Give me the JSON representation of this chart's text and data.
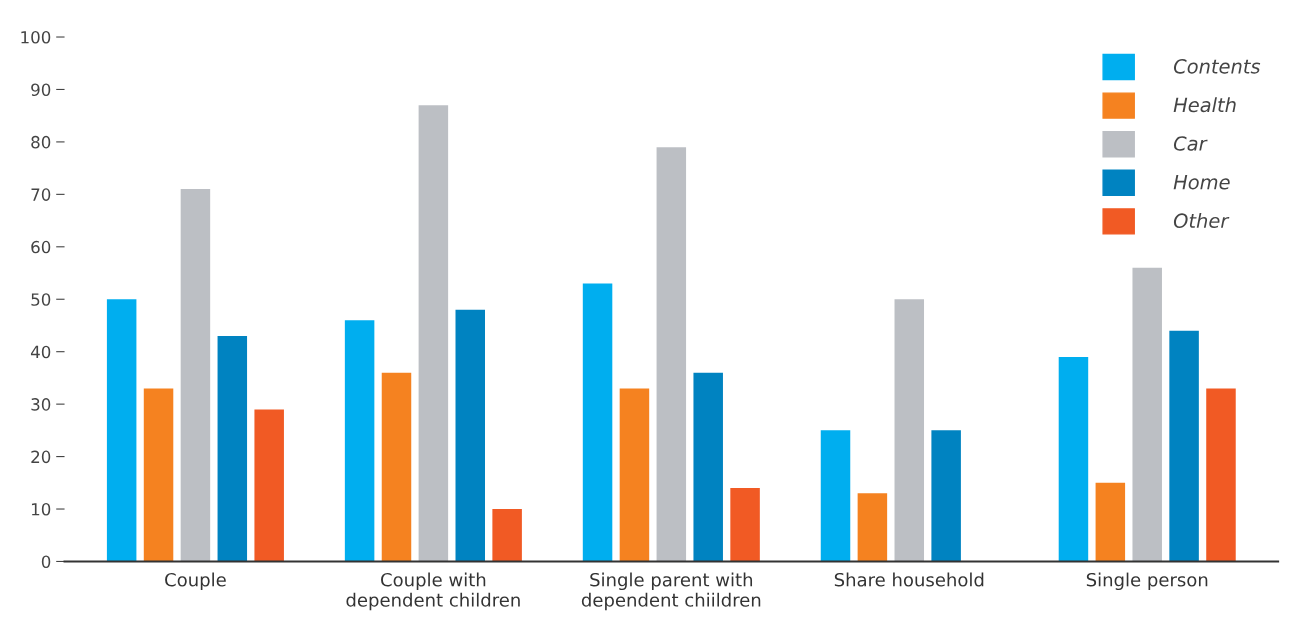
{
  "chart_data": {
    "type": "bar",
    "categories": [
      "Couple",
      "Couple with\ndependent children",
      "Single parent with\ndependent chiildren",
      "Share household",
      "Single person"
    ],
    "series": [
      {
        "name": "Contents",
        "color": "#00aeef",
        "values": [
          50,
          46,
          53,
          25,
          39
        ]
      },
      {
        "name": "Health",
        "color": "#f58220",
        "values": [
          33,
          36,
          33,
          13,
          15
        ]
      },
      {
        "name": "Car",
        "color": "#bcbfc4",
        "values": [
          71,
          87,
          79,
          50,
          56
        ]
      },
      {
        "name": "Home",
        "color": "#0083c1",
        "values": [
          43,
          48,
          36,
          25,
          44
        ]
      },
      {
        "name": "Other",
        "color": "#f15a24",
        "values": [
          29,
          10,
          14,
          null,
          33
        ]
      }
    ],
    "ylim": [
      0,
      100
    ],
    "yticks": [
      0,
      10,
      20,
      30,
      40,
      50,
      60,
      70,
      80,
      90,
      100
    ],
    "grid": false,
    "legend": "top right"
  }
}
